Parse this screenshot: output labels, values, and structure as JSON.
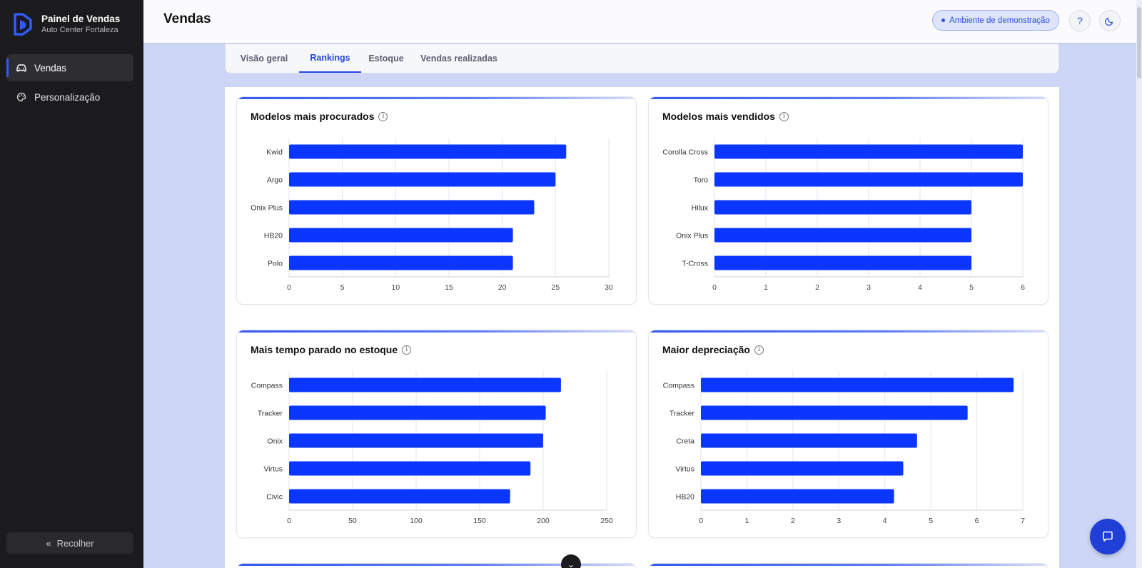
{
  "sidebar": {
    "brand_title": "Painel de Vendas",
    "brand_subtitle": "Auto Center Fortaleza",
    "items": [
      {
        "label": "Vendas",
        "icon": "car-icon",
        "active": true
      },
      {
        "label": "Personalização",
        "icon": "palette-icon",
        "active": false
      }
    ],
    "collapse_label": "Recolher"
  },
  "header": {
    "title": "Vendas",
    "demo_badge": "Ambiente de demonstração"
  },
  "tabs": [
    {
      "label": "Visão geral",
      "active": false
    },
    {
      "label": "Rankings",
      "active": true
    },
    {
      "label": "Estoque",
      "active": false
    },
    {
      "label": "Vendas realizadas",
      "active": false
    }
  ],
  "colors": {
    "accent": "#2547e6",
    "bar": "#0a36ff",
    "sidebar": "#1b1b1d"
  },
  "chart_data": [
    {
      "type": "bar",
      "orientation": "horizontal",
      "title": "Modelos mais procurados",
      "categories": [
        "Kwid",
        "Argo",
        "Onix Plus",
        "HB20",
        "Polo"
      ],
      "values": [
        26,
        25,
        23,
        21,
        21
      ],
      "xlim": [
        0,
        30
      ],
      "xticks": [
        0,
        5,
        10,
        15,
        20,
        25,
        30
      ]
    },
    {
      "type": "bar",
      "orientation": "horizontal",
      "title": "Modelos mais vendidos",
      "categories": [
        "Corolla Cross",
        "Toro",
        "Hilux",
        "Onix Plus",
        "T-Cross"
      ],
      "values": [
        6,
        6,
        5,
        5,
        5
      ],
      "xlim": [
        0,
        6
      ],
      "xticks": [
        0,
        1,
        2,
        3,
        4,
        5,
        6
      ]
    },
    {
      "type": "bar",
      "orientation": "horizontal",
      "title": "Mais tempo parado no estoque",
      "categories": [
        "Compass",
        "Tracker",
        "Onix",
        "Virtus",
        "Civic"
      ],
      "values": [
        214,
        202,
        200,
        190,
        174
      ],
      "xlim": [
        0,
        250
      ],
      "xticks": [
        0,
        50,
        100,
        150,
        200,
        250
      ]
    },
    {
      "type": "bar",
      "orientation": "horizontal",
      "title": "Maior depreciação",
      "categories": [
        "Compass",
        "Tracker",
        "Creta",
        "Virtus",
        "HB20"
      ],
      "values": [
        6.8,
        5.8,
        4.7,
        4.4,
        4.2
      ],
      "xlim": [
        0,
        7
      ],
      "xticks": [
        0,
        1,
        2,
        3,
        4,
        5,
        6,
        7
      ]
    }
  ]
}
